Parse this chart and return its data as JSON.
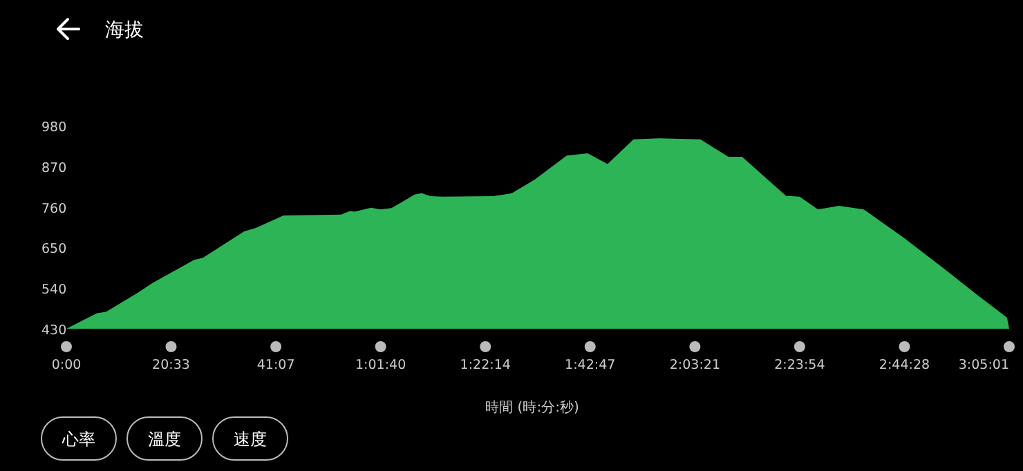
{
  "chart_data": {
    "type": "area",
    "title": "海拔",
    "xlabel": "時間 (時:分:秒)",
    "annotations": [
      "心率",
      "溫度",
      "速度"
    ],
    "x": [
      0,
      6.0,
      7.8,
      14.1,
      16.8,
      25.0,
      26.8,
      34.9,
      37.2,
      42.6,
      53.9,
      55.7,
      56.6,
      59.8,
      61.6,
      63.8,
      65.7,
      68.4,
      69.7,
      71.5,
      73.8,
      83.7,
      86.5,
      87.4,
      91.9,
      98.2,
      102.3,
      106.2,
      111.3,
      116.3,
      124.4,
      129.9,
      132.6,
      141.2,
      143.9,
      147.5,
      151.6,
      156.5,
      164.2,
      172.4,
      178.7,
      182.8,
      184.6,
      185.017
    ],
    "series": [
      {
        "color": "#2db456",
        "values": [
          430,
          472,
          476,
          528,
          553,
          616,
          622,
          694,
          703,
          737,
          739,
          749,
          747,
          758,
          753,
          757,
          772,
          794,
          797,
          789,
          788,
          789,
          795,
          797,
          834,
          899,
          905,
          876,
          943,
          946,
          943,
          896,
          896,
          790,
          788,
          753,
          763,
          753,
          678,
          591,
          522,
          479,
          460,
          430
        ]
      }
    ],
    "xlim": [
      0,
      185.017
    ],
    "xticks": [
      {
        "value": 0,
        "label": "0:00"
      },
      {
        "value": 20.55,
        "label": "20:33"
      },
      {
        "value": 41.117,
        "label": "41:07"
      },
      {
        "value": 61.667,
        "label": "1:01:40"
      },
      {
        "value": 82.233,
        "label": "1:22:14"
      },
      {
        "value": 102.783,
        "label": "1:42:47"
      },
      {
        "value": 123.35,
        "label": "2:03:21"
      },
      {
        "value": 143.9,
        "label": "2:23:54"
      },
      {
        "value": 164.467,
        "label": "2:44:28"
      },
      {
        "value": 185.017,
        "label": "3:05:01"
      }
    ],
    "ylim": [
      430,
      980
    ],
    "yticks": [
      430,
      540,
      650,
      760,
      870,
      980
    ]
  }
}
